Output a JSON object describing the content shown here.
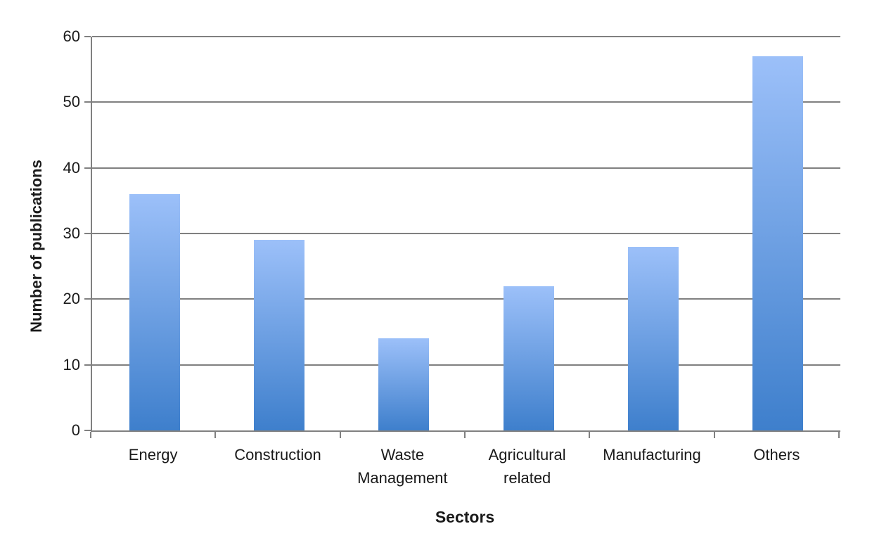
{
  "chart_data": {
    "type": "bar",
    "categories": [
      "Energy",
      "Construction",
      "Waste Management",
      "Agricultural related",
      "Manufacturing",
      "Others"
    ],
    "values": [
      36,
      29,
      14,
      22,
      28,
      57
    ],
    "title": "",
    "xlabel": "Sectors",
    "ylabel": "Number of publications",
    "ylim": [
      0,
      60
    ],
    "yticks": [
      0,
      10,
      20,
      30,
      40,
      50,
      60
    ],
    "grid": "horizontal",
    "legend": "none",
    "colors": {
      "bar_gradient_top": "#9CC0F9",
      "bar_gradient_bottom": "#3E7FCC",
      "gridline": "#808080",
      "axis": "#808080",
      "text": "#1A1A1A",
      "background": "#FFFFFF"
    }
  }
}
